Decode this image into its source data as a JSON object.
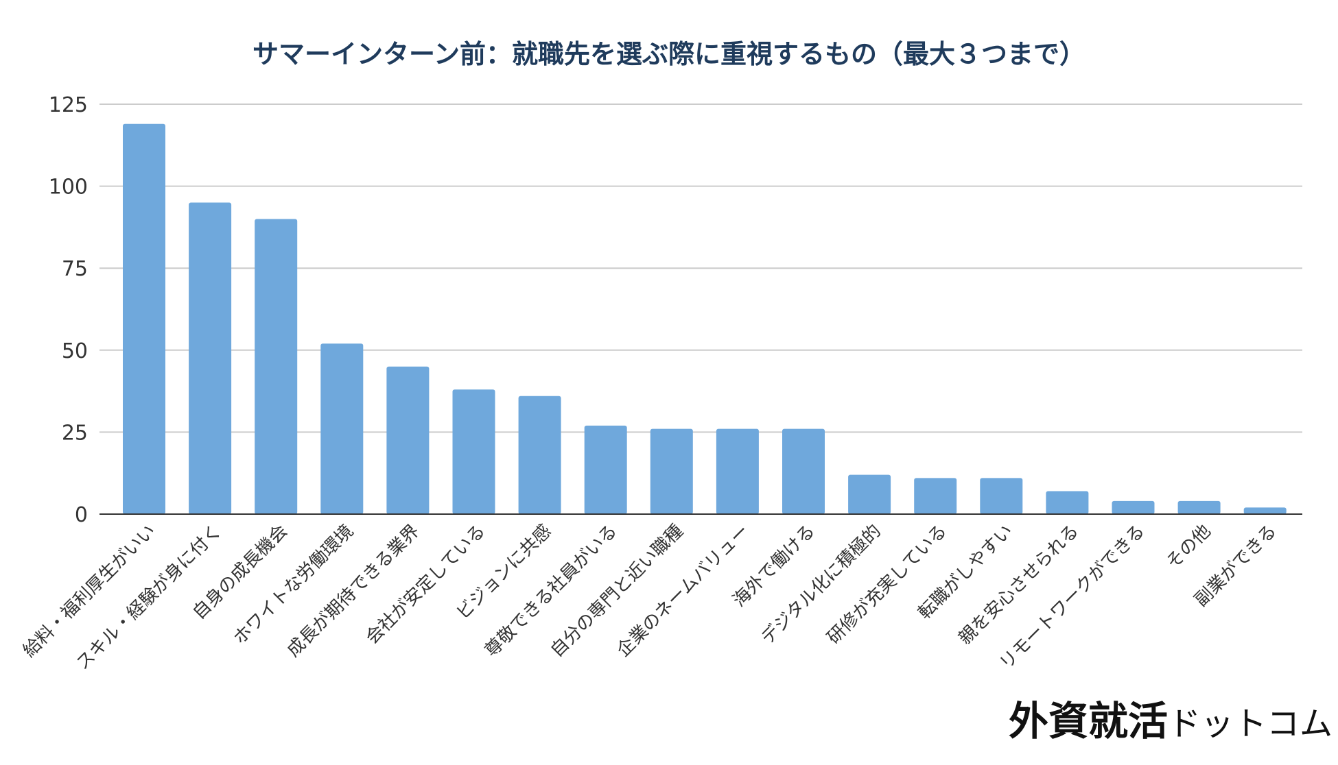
{
  "chart_data": {
    "type": "bar",
    "title": "サマーインターン前：就職先を選ぶ際に重視するもの（最大３つまで）",
    "xlabel": "",
    "ylabel": "",
    "ylim": [
      0,
      125
    ],
    "yticks": [
      0,
      25,
      50,
      75,
      100,
      125
    ],
    "grid": true,
    "legend": "none",
    "bar_color": "#6fa8dc",
    "categories": [
      "給料・福利厚生がいい",
      "スキル・経験が身に付く",
      "自身の成長機会",
      "ホワイトな労働環境",
      "成長が期待できる業界",
      "会社が安定している",
      "ビジョンに共感",
      "尊敬できる社員がいる",
      "自分の専門と近い職種",
      "企業のネームバリュー",
      "海外で働ける",
      "デジタル化に積極的",
      "研修が充実している",
      "転職がしやすい",
      "親を安心させられる",
      "リモートワークができる",
      "その他",
      "副業ができる"
    ],
    "values": [
      119,
      95,
      90,
      52,
      45,
      38,
      36,
      27,
      26,
      26,
      26,
      12,
      11,
      11,
      7,
      4,
      4,
      2
    ]
  },
  "watermark": {
    "main": "外資就活",
    "sub": "ドットコム"
  }
}
